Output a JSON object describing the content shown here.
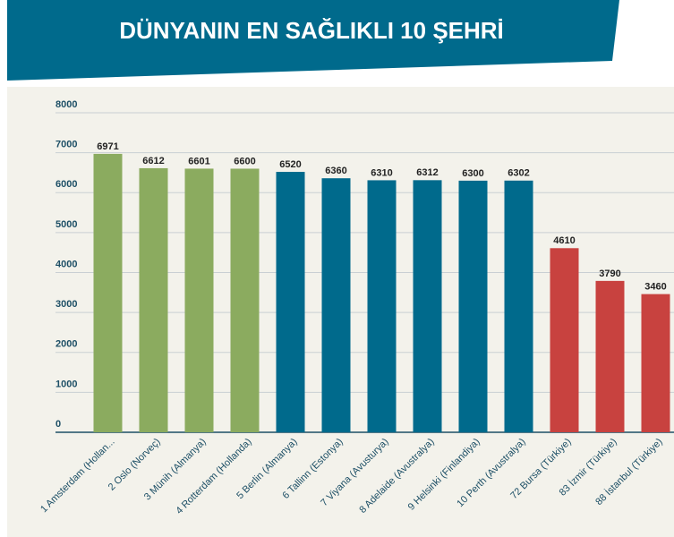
{
  "chart_data": {
    "type": "bar",
    "title": "DÜNYANIN EN SAĞLIKLI 10 ŞEHRİ",
    "categories": [
      "1 Amsterdam (Hollan...",
      "2 Oslo (Norveç)",
      "3 Münih (Almanya)",
      "4 Rotterdam (Hollanda)",
      "5 Berlin (Almanya)",
      "6 Tallinn (Estonya)",
      "7 Viyana (Avusturya)",
      "8 Adelaide (Avustralya)",
      "9 Helsinki (Finlandiya)",
      "10 Perth (Avustralya)",
      "72 Bursa (Türkiye)",
      "83 İzmir (Türkiye)",
      "88 İstanbul (Türkiye)"
    ],
    "values": [
      6971,
      6612,
      6601,
      6600,
      6520,
      6360,
      6310,
      6312,
      6300,
      6302,
      4610,
      3790,
      3460
    ],
    "colors": [
      "#8bab5f",
      "#8bab5f",
      "#8bab5f",
      "#8bab5f",
      "#006a8c",
      "#006a8c",
      "#006a8c",
      "#006a8c",
      "#006a8c",
      "#006a8c",
      "#c8423f",
      "#c8423f",
      "#c8423f"
    ],
    "ylim": [
      0,
      8000
    ],
    "yticks": [
      0,
      1000,
      2000,
      3000,
      4000,
      5000,
      6000,
      7000,
      8000
    ],
    "grid": true
  }
}
